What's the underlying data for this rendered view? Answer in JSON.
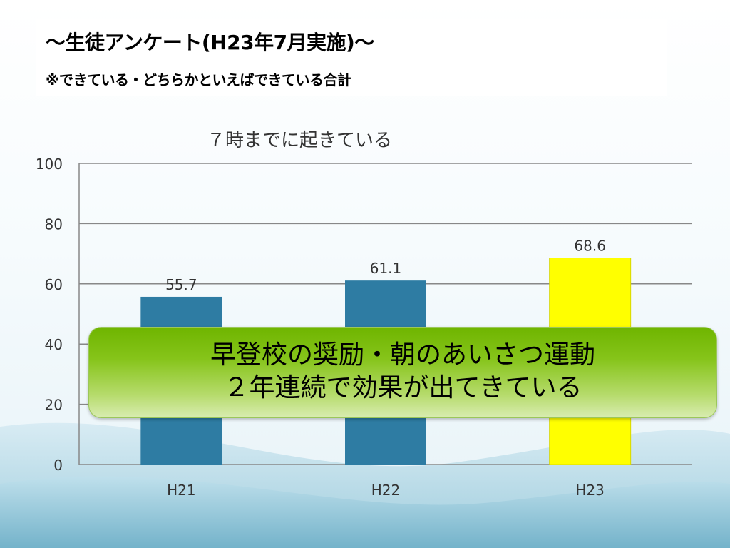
{
  "header": {
    "title": "～生徒アンケート(H23年7月実施)～",
    "subtitle": "※できている・どちらかといえばできている合計"
  },
  "chart_data": {
    "type": "bar",
    "title": "７時までに起きている",
    "categories": [
      "H21",
      "H22",
      "H23"
    ],
    "values": [
      55.7,
      61.1,
      68.6
    ],
    "data_labels": [
      "55.7",
      "61.1",
      "68.6"
    ],
    "bar_colors": [
      "#2e7ca3",
      "#2e7ca3",
      "#ffff00"
    ],
    "ylim": [
      0,
      100
    ],
    "yticks": [
      0,
      20,
      40,
      60,
      80,
      100
    ],
    "ytick_labels": [
      "0",
      "20",
      "40",
      "60",
      "80",
      "100"
    ],
    "xlabel": "",
    "ylabel": "",
    "grid": true,
    "legend": "none"
  },
  "callout": {
    "line1": "早登校の奨励・朝のあいさつ運動",
    "line2": "２年連続で効果が出てきている"
  },
  "colors": {
    "callout_green": "#7dbd0c",
    "bar_blue": "#2e7ca3",
    "bar_yellow": "#ffff00"
  }
}
